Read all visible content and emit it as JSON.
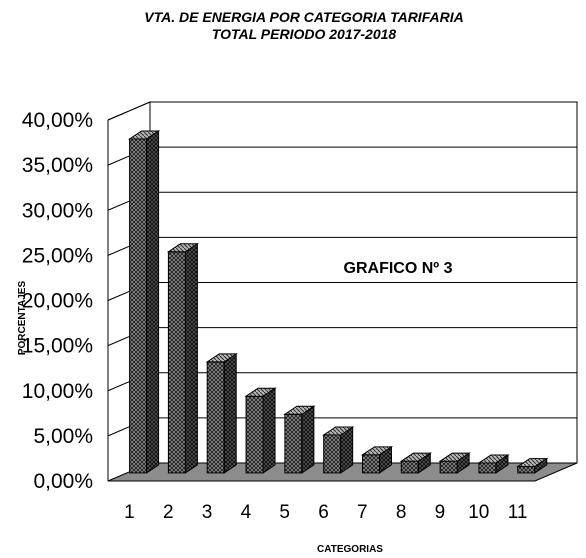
{
  "chart_data": {
    "type": "bar",
    "title": "VTA. DE ENERGIA POR CATEGORIA TARIFARIA",
    "subtitle": "TOTAL PERIODO 2017-2018",
    "xlabel": "CATEGORIAS",
    "ylabel": "PORCENTAJES",
    "annotation": "GRAFICO Nº 3",
    "categories": [
      "1",
      "2",
      "3",
      "4",
      "5",
      "6",
      "7",
      "8",
      "9",
      "10",
      "11"
    ],
    "values": [
      37.0,
      24.5,
      12.3,
      8.5,
      6.5,
      4.2,
      2.0,
      1.3,
      1.3,
      1.1,
      0.7
    ],
    "ylim": [
      0,
      40
    ],
    "yticks": [
      "0,00%",
      "5,00%",
      "10,00%",
      "15,00%",
      "20,00%",
      "25,00%",
      "30,00%",
      "35,00%",
      "40,00%"
    ],
    "grid": true,
    "three_d": true,
    "bar_color": "#7a7a7a",
    "floor_color": "#8c8c8c"
  }
}
